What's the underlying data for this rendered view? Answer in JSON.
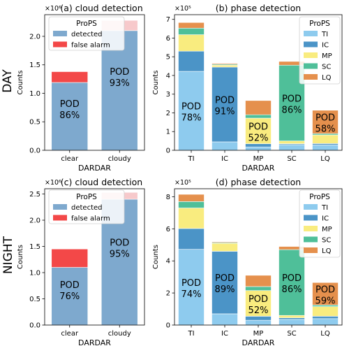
{
  "row_labels": [
    "DAY",
    "NIGHT"
  ],
  "colors": {
    "TI": "#8ecbee",
    "IC": "#4b94c7",
    "MP": "#f9ec7f",
    "SC": "#4fbf99",
    "LQ": "#e5904d",
    "detected": "#7ea9ce",
    "false_alarm": "#f34848",
    "false_alarm_light": "#f7c9cb"
  },
  "chart_data": [
    {
      "id": "a",
      "type": "bar",
      "stacked": true,
      "title": "(a) cloud detection",
      "xlabel": "DARDAR",
      "ylabel": "Counts",
      "exponent": "×10⁶",
      "scale": 1000000,
      "ylim": [
        0,
        2.38
      ],
      "yticks": [
        "0.0",
        "0.5",
        "1.0",
        "1.5",
        "2.0"
      ],
      "ytick_values": [
        0,
        0.5,
        1,
        1.5,
        2
      ],
      "categories": [
        "clear",
        "cloudy"
      ],
      "series": [
        {
          "name": "detected",
          "values": [
            1.19,
            2.1
          ],
          "color_key": "detected"
        },
        {
          "name": "false alarm",
          "values": [
            0.19,
            0.18
          ],
          "color_keys": [
            "false_alarm",
            "false_alarm_light"
          ]
        }
      ],
      "annotations": [
        {
          "label": "POD",
          "value": "86%"
        },
        {
          "label": "POD",
          "value": "93%"
        }
      ],
      "legend": {
        "title": "ProPS",
        "position": "top-left"
      }
    },
    {
      "id": "b",
      "type": "bar",
      "stacked": true,
      "title": "(b) phase detection",
      "xlabel": "DARDAR",
      "ylabel": "Counts",
      "exponent": "×10⁵",
      "scale": 100000,
      "ylim": [
        0,
        7.25
      ],
      "yticks": [
        "0",
        "1",
        "2",
        "3",
        "4",
        "5",
        "6",
        "7"
      ],
      "ytick_values": [
        0,
        1,
        2,
        3,
        4,
        5,
        6,
        7
      ],
      "categories": [
        "TI",
        "IC",
        "MP",
        "SC",
        "LQ"
      ],
      "series": [
        {
          "name": "TI",
          "values": [
            4.22,
            0.45,
            0.18,
            0.3,
            0.28
          ]
        },
        {
          "name": "IC",
          "values": [
            1.08,
            4.0,
            0.17,
            0.05,
            0.08
          ]
        },
        {
          "name": "MP",
          "values": [
            0.88,
            0.1,
            1.37,
            0.15,
            0.46
          ]
        },
        {
          "name": "SC",
          "values": [
            0.35,
            0.05,
            0.18,
            4.05,
            0.07
          ]
        },
        {
          "name": "LQ",
          "values": [
            0.3,
            0.05,
            0.76,
            0.2,
            1.25
          ]
        }
      ],
      "annotations": [
        {
          "label": "POD",
          "value": "78%"
        },
        {
          "label": "POD",
          "value": "91%"
        },
        {
          "label": "POD",
          "value": "52%"
        },
        {
          "label": "POD",
          "value": "86%"
        },
        {
          "label": "POD",
          "value": "58%"
        }
      ],
      "legend": {
        "title": "ProPS",
        "position": "top-right"
      }
    },
    {
      "id": "c",
      "type": "bar",
      "stacked": true,
      "title": "(c) cloud detection",
      "xlabel": "DARDAR",
      "ylabel": "Counts",
      "exponent": "×10⁶",
      "scale": 1000000,
      "ylim": [
        0,
        2.6
      ],
      "yticks": [
        "0.0",
        "0.5",
        "1.0",
        "1.5",
        "2.0",
        "2.5"
      ],
      "ytick_values": [
        0,
        0.5,
        1,
        1.5,
        2,
        2.5
      ],
      "categories": [
        "clear",
        "cloudy"
      ],
      "series": [
        {
          "name": "detected",
          "values": [
            1.1,
            2.4
          ],
          "color_key": "detected"
        },
        {
          "name": "false alarm",
          "values": [
            0.35,
            0.13
          ],
          "color_keys": [
            "false_alarm",
            "false_alarm_light"
          ]
        }
      ],
      "annotations": [
        {
          "label": "POD",
          "value": "76%"
        },
        {
          "label": "POD",
          "value": "95%"
        }
      ],
      "legend": {
        "title": "ProPS",
        "position": "top-left"
      }
    },
    {
      "id": "d",
      "type": "bar",
      "stacked": true,
      "title": "(d) phase detection",
      "xlabel": "DARDAR",
      "ylabel": "Counts",
      "exponent": "×10⁵",
      "scale": 100000,
      "ylim": [
        0,
        8.5
      ],
      "yticks": [
        "0",
        "2",
        "4",
        "6",
        "8"
      ],
      "ytick_values": [
        0,
        2,
        4,
        6,
        8
      ],
      "categories": [
        "TI",
        "IC",
        "MP",
        "SC",
        "LQ"
      ],
      "series": [
        {
          "name": "TI",
          "values": [
            4.72,
            0.7,
            0.3,
            0.35,
            0.4
          ]
        },
        {
          "name": "IC",
          "values": [
            1.3,
            3.9,
            0.25,
            0.1,
            0.15
          ]
        },
        {
          "name": "MP",
          "values": [
            1.28,
            0.5,
            1.6,
            0.15,
            0.6
          ]
        },
        {
          "name": "SC",
          "values": [
            0.4,
            0.05,
            0.25,
            4.1,
            0.1
          ]
        },
        {
          "name": "LQ",
          "values": [
            0.45,
            0.05,
            0.7,
            0.2,
            1.4
          ]
        }
      ],
      "annotations": [
        {
          "label": "POD",
          "value": "74%"
        },
        {
          "label": "POD",
          "value": "89%"
        },
        {
          "label": "POD",
          "value": "52%"
        },
        {
          "label": "POD",
          "value": "86%"
        },
        {
          "label": "POD",
          "value": "59%"
        }
      ],
      "legend": {
        "title": "ProPS",
        "position": "top-right"
      }
    }
  ]
}
